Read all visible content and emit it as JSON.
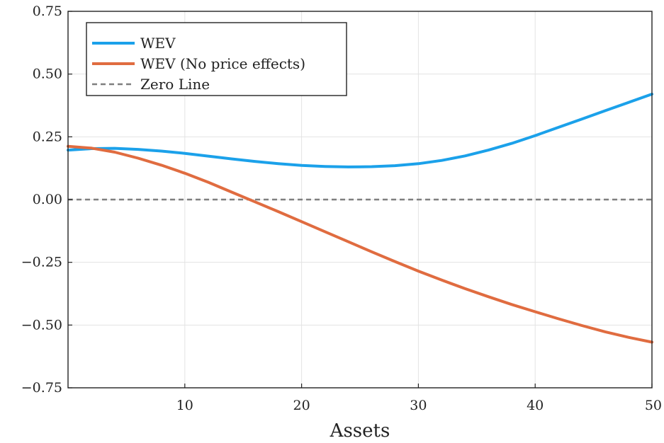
{
  "chart_data": {
    "type": "line",
    "title": "",
    "xlabel": "Assets",
    "ylabel": "",
    "xlim": [
      0,
      50
    ],
    "ylim": [
      -0.75,
      0.75
    ],
    "xticks": [
      10,
      20,
      30,
      40,
      50
    ],
    "xtick_labels": [
      "10",
      "20",
      "30",
      "40",
      "50"
    ],
    "yticks": [
      -0.75,
      -0.5,
      -0.25,
      0,
      0.25,
      0.5,
      0.75
    ],
    "ytick_labels": [
      "−0.75",
      "−0.50",
      "−0.25",
      "0.00",
      "0.25",
      "0.50",
      "0.75"
    ],
    "grid": true,
    "legend_position": "top-left",
    "series": [
      {
        "name": "WEV",
        "color": "#1ba1ea",
        "style": "solid",
        "x": [
          0,
          2,
          4,
          6,
          8,
          10,
          12,
          14,
          16,
          18,
          20,
          22,
          24,
          26,
          28,
          30,
          32,
          34,
          36,
          38,
          40,
          42,
          44,
          46,
          48,
          50
        ],
        "y": [
          0.197,
          0.203,
          0.204,
          0.2,
          0.193,
          0.184,
          0.173,
          0.162,
          0.152,
          0.143,
          0.136,
          0.132,
          0.13,
          0.131,
          0.135,
          0.143,
          0.156,
          0.174,
          0.197,
          0.224,
          0.255,
          0.288,
          0.321,
          0.354,
          0.387,
          0.42
        ]
      },
      {
        "name": "WEV (No price effects)",
        "color": "#e06c40",
        "style": "solid",
        "x": [
          0,
          2,
          4,
          6,
          8,
          10,
          12,
          14,
          16,
          18,
          20,
          22,
          24,
          26,
          28,
          30,
          32,
          34,
          36,
          38,
          40,
          42,
          44,
          46,
          48,
          50
        ],
        "y": [
          0.212,
          0.205,
          0.189,
          0.165,
          0.137,
          0.105,
          0.069,
          0.03,
          -0.009,
          -0.048,
          -0.088,
          -0.128,
          -0.168,
          -0.208,
          -0.247,
          -0.285,
          -0.321,
          -0.355,
          -0.387,
          -0.418,
          -0.447,
          -0.475,
          -0.502,
          -0.527,
          -0.549,
          -0.568
        ]
      },
      {
        "name": "Zero Line",
        "color": "#7f7f7f",
        "style": "dashed",
        "x": [
          0,
          50
        ],
        "y": [
          0,
          0
        ]
      }
    ]
  }
}
